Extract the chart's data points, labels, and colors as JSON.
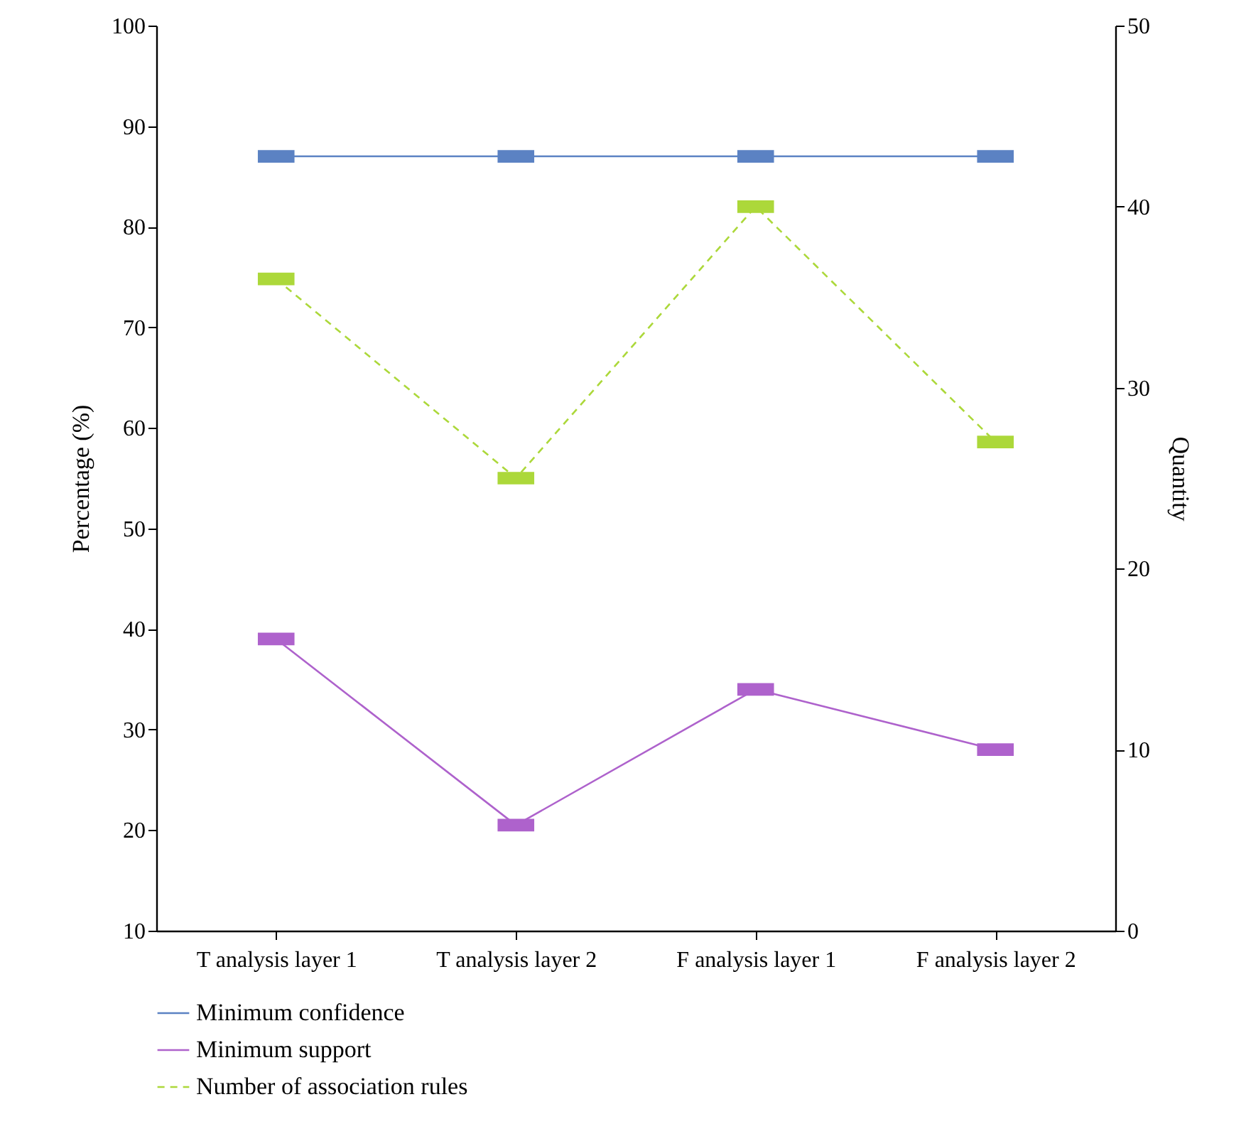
{
  "chart_data": {
    "type": "line",
    "ylabel": "Percentage (%)",
    "y2label": "Quantity",
    "categories": [
      "T analysis layer 1",
      "T analysis layer 2",
      "F analysis layer 1",
      "F analysis layer 2"
    ],
    "series": [
      {
        "name": "Minimum confidence",
        "color": "#5b82c3",
        "values": [
          87,
          87,
          87,
          87
        ],
        "axis": "y",
        "line_style": "solid"
      },
      {
        "name": "Minimum support",
        "color": "#ae62cc",
        "values": [
          39,
          20.5,
          34,
          28
        ],
        "axis": "y",
        "line_style": "solid"
      },
      {
        "name": "Number of association rules",
        "color": "#acd83a",
        "values": [
          36,
          25,
          40,
          27
        ],
        "axis": "y2",
        "line_style": "dashed"
      }
    ],
    "ylim": [
      10,
      100
    ],
    "yticks": [
      10,
      20,
      30,
      40,
      50,
      60,
      70,
      80,
      90,
      100
    ],
    "y2lim": [
      0,
      50
    ],
    "y2ticks": [
      0,
      10,
      20,
      30,
      40,
      50
    ],
    "grid": false,
    "legend": "bottom",
    "marker": "square"
  }
}
